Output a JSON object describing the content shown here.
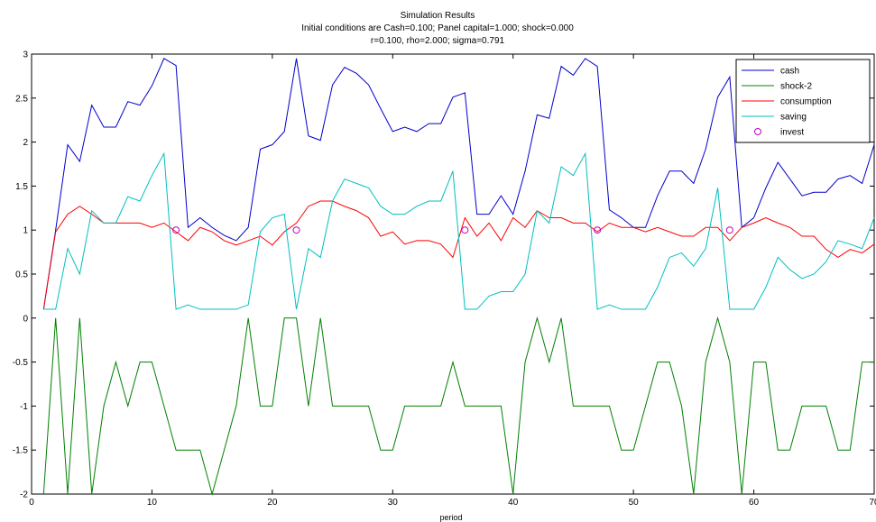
{
  "chart_data": {
    "type": "line",
    "title": "Simulation Results",
    "subtitle_lines": [
      "Initial conditions are Cash=0.100; Panel capital=1.000; shock=0.000",
      "r=0.100, rho=2.000; sigma=0.791"
    ],
    "xlabel": "period",
    "ylabel": "",
    "xlim": [
      0,
      70
    ],
    "ylim": [
      -2,
      3
    ],
    "xticks": [
      0,
      10,
      20,
      30,
      40,
      50,
      60,
      70
    ],
    "yticks": [
      -2,
      -1.5,
      -1,
      -0.5,
      0,
      0.5,
      1,
      1.5,
      2,
      2.5,
      3
    ],
    "legend_position": "top-right",
    "grid": false,
    "x": [
      1,
      2,
      3,
      4,
      5,
      6,
      7,
      8,
      9,
      10,
      11,
      12,
      13,
      14,
      15,
      16,
      17,
      18,
      19,
      20,
      21,
      22,
      23,
      24,
      25,
      26,
      27,
      28,
      29,
      30,
      31,
      32,
      33,
      34,
      35,
      36,
      37,
      38,
      39,
      40,
      41,
      42,
      43,
      44,
      45,
      46,
      47,
      48,
      49,
      50,
      51,
      52,
      53,
      54,
      55,
      56,
      57,
      58,
      59,
      60,
      61,
      62,
      63,
      64,
      65,
      66,
      67,
      68,
      69,
      70
    ],
    "series": [
      {
        "name": "cash",
        "color": "#0000cc",
        "style": "line",
        "values": [
          0.1,
          1.0,
          1.97,
          1.78,
          2.42,
          2.17,
          2.17,
          2.46,
          2.42,
          2.64,
          2.95,
          2.87,
          1.03,
          1.14,
          1.03,
          0.94,
          0.88,
          1.03,
          1.92,
          1.97,
          2.12,
          2.95,
          2.07,
          2.02,
          2.65,
          2.85,
          2.78,
          2.65,
          2.38,
          2.12,
          2.17,
          2.12,
          2.21,
          2.21,
          2.51,
          2.56,
          1.18,
          1.18,
          1.39,
          1.18,
          1.67,
          2.31,
          2.27,
          2.86,
          2.76,
          2.95,
          2.86,
          1.23,
          1.14,
          1.03,
          1.03,
          1.39,
          1.67,
          1.67,
          1.53,
          1.92,
          2.51,
          2.74,
          1.03,
          1.14,
          1.48,
          1.77,
          1.58,
          1.39,
          1.43,
          1.43,
          1.58,
          1.62,
          1.53,
          1.97
        ]
      },
      {
        "name": "shock-2",
        "color": "#008000",
        "style": "line",
        "values": [
          -2,
          0,
          -2,
          0,
          -2,
          -1,
          -0.5,
          -1,
          -0.5,
          -0.5,
          -1,
          -1.5,
          -1.5,
          -1.5,
          -2,
          -1.5,
          -1,
          0,
          -1,
          -1,
          0,
          0,
          -1,
          0,
          -1,
          -1,
          -1,
          -1,
          -1.5,
          -1.5,
          -1,
          -1,
          -1,
          -1,
          -0.5,
          -1,
          -1,
          -1,
          -1,
          -2,
          -0.5,
          0,
          -0.5,
          0,
          -1,
          -1,
          -1,
          -1,
          -1.5,
          -1.5,
          -1,
          -0.5,
          -0.5,
          -1,
          -2,
          -0.5,
          0,
          -0.5,
          -2,
          -0.5,
          -0.5,
          -1.5,
          -1.5,
          -1,
          -1,
          -1,
          -1.5,
          -1.5,
          -0.5,
          -0.5
        ]
      },
      {
        "name": "consumption",
        "color": "#ff0000",
        "style": "line",
        "values": [
          0.1,
          0.98,
          1.18,
          1.27,
          1.18,
          1.08,
          1.08,
          1.08,
          1.08,
          1.03,
          1.08,
          0.98,
          0.88,
          1.03,
          0.98,
          0.88,
          0.83,
          0.88,
          0.93,
          0.83,
          0.98,
          1.08,
          1.27,
          1.33,
          1.33,
          1.27,
          1.22,
          1.14,
          0.93,
          0.98,
          0.84,
          0.88,
          0.88,
          0.84,
          0.69,
          1.14,
          0.93,
          1.08,
          0.88,
          1.14,
          1.03,
          1.22,
          1.14,
          1.14,
          1.08,
          1.08,
          0.98,
          1.08,
          1.03,
          1.03,
          0.98,
          1.03,
          0.98,
          0.93,
          0.93,
          1.03,
          1.03,
          0.88,
          1.03,
          1.08,
          1.14,
          1.08,
          1.03,
          0.93,
          0.93,
          0.78,
          0.69,
          0.78,
          0.74,
          0.84
        ]
      },
      {
        "name": "saving",
        "color": "#00bfbf",
        "style": "line",
        "values": [
          0.1,
          0.1,
          0.79,
          0.5,
          1.22,
          1.08,
          1.08,
          1.38,
          1.33,
          1.62,
          1.87,
          0.1,
          0.15,
          0.1,
          0.1,
          0.1,
          0.1,
          0.15,
          0.98,
          1.14,
          1.18,
          0.1,
          0.79,
          0.69,
          1.33,
          1.58,
          1.53,
          1.48,
          1.27,
          1.18,
          1.18,
          1.27,
          1.33,
          1.33,
          1.67,
          0.1,
          0.1,
          0.25,
          0.3,
          0.3,
          0.5,
          1.22,
          1.08,
          1.72,
          1.62,
          1.87,
          0.1,
          0.15,
          0.1,
          0.1,
          0.1,
          0.35,
          0.69,
          0.74,
          0.59,
          0.79,
          1.48,
          0.1,
          0.1,
          0.1,
          0.35,
          0.69,
          0.55,
          0.45,
          0.5,
          0.64,
          0.88,
          0.84,
          0.79,
          1.14
        ]
      },
      {
        "name": "invest",
        "color": "#c000c0",
        "style": "marker",
        "x": [
          12,
          22,
          36,
          47,
          58
        ],
        "values": [
          1,
          1,
          1,
          1,
          1
        ]
      }
    ]
  }
}
